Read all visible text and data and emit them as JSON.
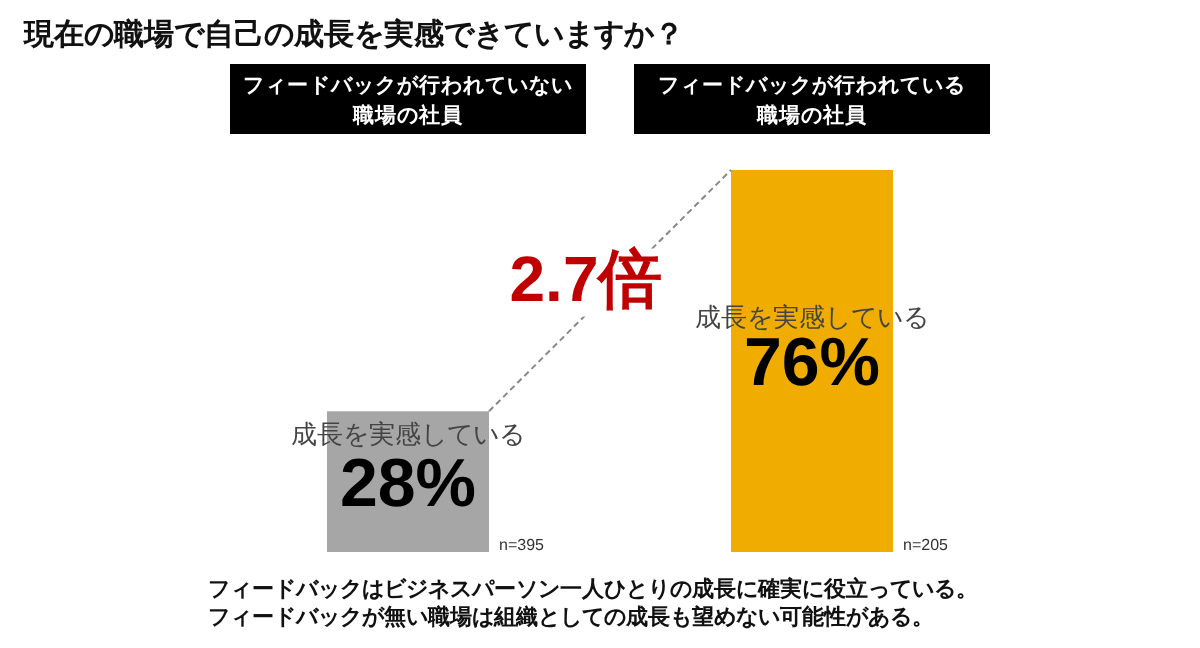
{
  "chart_data": {
    "type": "bar",
    "title": "現在の職場で自己の成長を実感できていますか？",
    "categories": [
      "フィードバックが行われていない職場の社員",
      "フィードバックが行われている職場の社員"
    ],
    "colors": [
      "#a6a6a6",
      "#f0ad00"
    ],
    "values": [
      28,
      76
    ],
    "value_labels": [
      "28%",
      "76%"
    ],
    "annotations": [
      "2.7倍",
      "成長を実感している",
      "成長を実感している",
      "n=395",
      "n=205",
      "フィードバックはビジネスパーソン一人ひとりの成長に確実に役立っている。",
      "フィードバックが無い職場は組織としての成長も望めない可能性がある。"
    ]
  }
}
